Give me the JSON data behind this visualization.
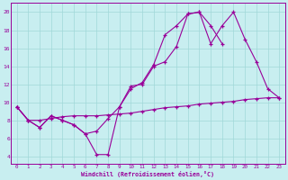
{
  "xlabel": "Windchill (Refroidissement éolien,°C)",
  "bg_color": "#c8eef0",
  "grid_color": "#a0d8d8",
  "line_color": "#990099",
  "x_ticks": [
    0,
    1,
    2,
    3,
    4,
    5,
    6,
    7,
    8,
    9,
    10,
    11,
    12,
    13,
    14,
    15,
    16,
    17,
    18,
    19,
    20,
    21,
    22,
    23
  ],
  "y_ticks": [
    4,
    6,
    8,
    10,
    12,
    14,
    16,
    18,
    20
  ],
  "ylim": [
    3.2,
    21.0
  ],
  "xlim": [
    -0.5,
    23.5
  ],
  "series": [
    {
      "x": [
        0,
        1,
        2,
        3,
        4,
        5,
        6,
        7,
        8,
        9,
        10,
        11,
        12,
        13,
        14,
        15,
        16,
        17,
        18,
        19,
        20,
        21,
        22,
        23
      ],
      "y": [
        9.5,
        8.0,
        7.2,
        8.5,
        8.0,
        7.5,
        6.5,
        4.2,
        4.2,
        9.5,
        11.8,
        12.0,
        14.0,
        14.5,
        16.2,
        19.8,
        20.0,
        16.5,
        18.5,
        20.0,
        17.0,
        14.5,
        11.5,
        10.5
      ]
    },
    {
      "x": [
        0,
        1,
        2,
        3,
        4,
        5,
        6,
        7,
        8,
        9,
        10,
        11,
        12,
        13,
        14,
        15,
        16,
        17,
        18
      ],
      "y": [
        9.5,
        8.0,
        7.2,
        8.5,
        8.0,
        7.5,
        6.5,
        6.8,
        8.2,
        9.5,
        11.5,
        12.2,
        14.2,
        17.5,
        18.5,
        19.8,
        20.0,
        18.5,
        16.5
      ]
    },
    {
      "x": [
        0,
        1,
        2,
        3,
        4,
        5,
        6,
        7,
        8,
        9,
        10,
        11,
        12,
        13,
        14,
        15,
        16,
        17,
        18,
        19,
        20,
        21,
        22,
        23
      ],
      "y": [
        9.5,
        8.0,
        8.0,
        8.2,
        8.4,
        8.5,
        8.5,
        8.5,
        8.6,
        8.7,
        8.8,
        9.0,
        9.2,
        9.4,
        9.5,
        9.6,
        9.8,
        9.9,
        10.0,
        10.1,
        10.3,
        10.4,
        10.5,
        10.5
      ]
    }
  ]
}
